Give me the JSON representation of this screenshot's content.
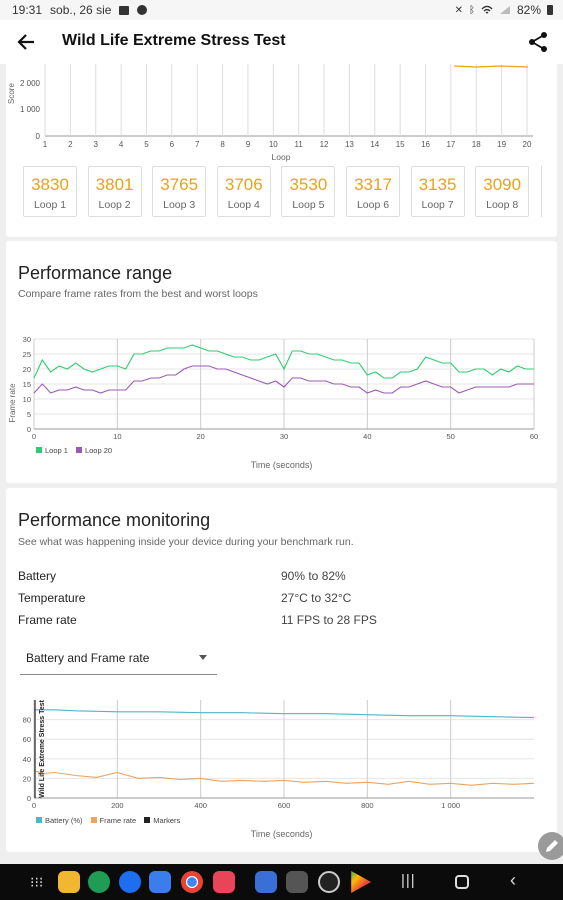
{
  "status_bar": {
    "time": "19:31",
    "date": "sob., 26 sie",
    "battery": "82%",
    "icons": [
      "gallery-icon",
      "messenger-icon",
      "mute-icon",
      "bluetooth-icon",
      "wifi-icon",
      "signal-icon",
      "battery-icon"
    ]
  },
  "app_bar": {
    "title": "Wild Life Extreme Stress Test",
    "back_icon": "arrow-back-icon",
    "share_icon": "share-icon"
  },
  "score_chart": {
    "ylabel": "Score",
    "y_ticks": [
      "2 000",
      "1 000",
      "0"
    ],
    "xlabel": "Loop",
    "x_ticks": [
      "1",
      "2",
      "3",
      "4",
      "5",
      "6",
      "7",
      "8",
      "9",
      "10",
      "11",
      "12",
      "13",
      "14",
      "15",
      "16",
      "17",
      "18",
      "19",
      "20"
    ],
    "line_color": "#e9a21b"
  },
  "loops": [
    {
      "score": "3830",
      "label": "Loop 1"
    },
    {
      "score": "3801",
      "label": "Loop 2"
    },
    {
      "score": "3765",
      "label": "Loop 3"
    },
    {
      "score": "3706",
      "label": "Loop 4"
    },
    {
      "score": "3530",
      "label": "Loop 5"
    },
    {
      "score": "3317",
      "label": "Loop 6"
    },
    {
      "score": "3135",
      "label": "Loop 7"
    },
    {
      "score": "3090",
      "label": "Loop 8"
    }
  ],
  "performance_range": {
    "title": "Performance range",
    "subtitle": "Compare frame rates from the best and worst loops",
    "chart_data": {
      "type": "line",
      "ylabel": "Frame rate",
      "xlabel": "Time (seconds)",
      "xlim": [
        0,
        60
      ],
      "ylim": [
        0,
        30
      ],
      "x_ticks": [
        "0",
        "10",
        "20",
        "30",
        "40",
        "50",
        "60"
      ],
      "y_ticks": [
        "30",
        "25",
        "20",
        "15",
        "10",
        "5",
        "0"
      ],
      "grid": true,
      "legend": "bottom-left",
      "series": [
        {
          "name": "Loop 1",
          "color": "#2ecc71",
          "x": [
            0,
            1,
            2,
            3,
            4,
            5,
            6,
            7,
            8,
            9,
            10,
            11,
            12,
            13,
            14,
            15,
            16,
            17,
            18,
            19,
            20,
            21,
            22,
            23,
            24,
            25,
            26,
            27,
            28,
            29,
            30,
            31,
            32,
            33,
            34,
            35,
            36,
            37,
            38,
            39,
            40,
            41,
            42,
            43,
            44,
            45,
            46,
            47,
            48,
            49,
            50,
            51,
            52,
            53,
            54,
            55,
            56,
            57,
            58,
            59,
            60
          ],
          "y": [
            17,
            23,
            19,
            21,
            20,
            22,
            20,
            19,
            20,
            21,
            21,
            20,
            25,
            25,
            26,
            26,
            27,
            27,
            27,
            28,
            27,
            26,
            26,
            25,
            24,
            24,
            23,
            23,
            24,
            25,
            20,
            26,
            26,
            25,
            25,
            24,
            23,
            23,
            22,
            22,
            18,
            19,
            17,
            17,
            19,
            19,
            20,
            24,
            23,
            22,
            22,
            19,
            19,
            20,
            20,
            18,
            20,
            19,
            21,
            20,
            20
          ]
        },
        {
          "name": "Loop 20",
          "color": "#9b59b6",
          "x": [
            0,
            1,
            2,
            3,
            4,
            5,
            6,
            7,
            8,
            9,
            10,
            11,
            12,
            13,
            14,
            15,
            16,
            17,
            18,
            19,
            20,
            21,
            22,
            23,
            24,
            25,
            26,
            27,
            28,
            29,
            30,
            31,
            32,
            33,
            34,
            35,
            36,
            37,
            38,
            39,
            40,
            41,
            42,
            43,
            44,
            45,
            46,
            47,
            48,
            49,
            50,
            51,
            52,
            53,
            54,
            55,
            56,
            57,
            58,
            59,
            60
          ],
          "y": [
            12,
            15,
            12,
            13,
            13,
            14,
            13,
            13,
            12,
            13,
            13,
            13,
            16,
            16,
            17,
            17,
            18,
            18,
            20,
            21,
            21,
            21,
            20,
            20,
            19,
            18,
            17,
            16,
            15,
            16,
            14,
            17,
            17,
            16,
            16,
            16,
            15,
            15,
            14,
            14,
            12,
            13,
            12,
            12,
            14,
            14,
            15,
            16,
            15,
            14,
            14,
            12,
            13,
            14,
            14,
            14,
            14,
            14,
            15,
            15,
            15
          ]
        }
      ]
    },
    "legend": [
      {
        "label": "Loop 1",
        "color": "#2ecc71"
      },
      {
        "label": "Loop 20",
        "color": "#9b59b6"
      }
    ]
  },
  "performance_monitoring": {
    "title": "Performance monitoring",
    "subtitle": "See what was happening inside your device during your benchmark run.",
    "rows": [
      {
        "label": "Battery",
        "value": "90% to 82%"
      },
      {
        "label": "Temperature",
        "value": "27°C to 32°C"
      },
      {
        "label": "Frame rate",
        "value": "11 FPS to 28 FPS"
      }
    ],
    "dropdown_value": "Battery and Frame rate",
    "chart_data": {
      "type": "line",
      "xlabel": "Time (seconds)",
      "xlim": [
        0,
        1200
      ],
      "ylim": [
        0,
        100
      ],
      "x_ticks": [
        "0",
        "200",
        "400",
        "600",
        "800",
        "1 000"
      ],
      "y_ticks": [
        "80",
        "60",
        "40",
        "20",
        "0"
      ],
      "marker_label": "Wild Life Extreme Stress Test",
      "grid": true,
      "legend": "bottom-left",
      "series": [
        {
          "name": "Battery (%)",
          "color": "#4fb5c9",
          "x": [
            0,
            50,
            100,
            200,
            300,
            400,
            500,
            600,
            700,
            800,
            900,
            1000,
            1100,
            1200
          ],
          "y": [
            90,
            90,
            89,
            88,
            88,
            87,
            87,
            86,
            86,
            85,
            84,
            84,
            83,
            82
          ]
        },
        {
          "name": "Frame rate",
          "color": "#f0a35e",
          "x": [
            0,
            25,
            50,
            100,
            150,
            200,
            250,
            300,
            350,
            400,
            450,
            500,
            550,
            600,
            650,
            700,
            750,
            800,
            850,
            900,
            950,
            1000,
            1050,
            1100,
            1150,
            1200
          ],
          "y": [
            28,
            25,
            26,
            23,
            21,
            26,
            20,
            21,
            19,
            20,
            17,
            18,
            17,
            18,
            16,
            17,
            15,
            16,
            14,
            17,
            14,
            15,
            13,
            15,
            14,
            15
          ]
        },
        {
          "name": "Markers",
          "color": "#222222",
          "x": [
            0
          ],
          "y": [
            0
          ]
        }
      ]
    },
    "legend": [
      {
        "label": "Battery (%)",
        "color": "#4fb5c9"
      },
      {
        "label": "Frame rate",
        "color": "#f0a35e"
      },
      {
        "label": "Markers",
        "color": "#222222"
      }
    ]
  },
  "nav_bar": {
    "apps": [
      "app-drawer-icon",
      "files-icon",
      "phone-icon",
      "messages-icon",
      "docs-icon",
      "chrome-icon",
      "camera-icon",
      "gallery-app-icon",
      "cpu-z-icon",
      "3dmark-icon",
      "play-store-icon"
    ],
    "buttons": [
      "recents-icon",
      "home-icon",
      "back-nav-icon"
    ]
  }
}
